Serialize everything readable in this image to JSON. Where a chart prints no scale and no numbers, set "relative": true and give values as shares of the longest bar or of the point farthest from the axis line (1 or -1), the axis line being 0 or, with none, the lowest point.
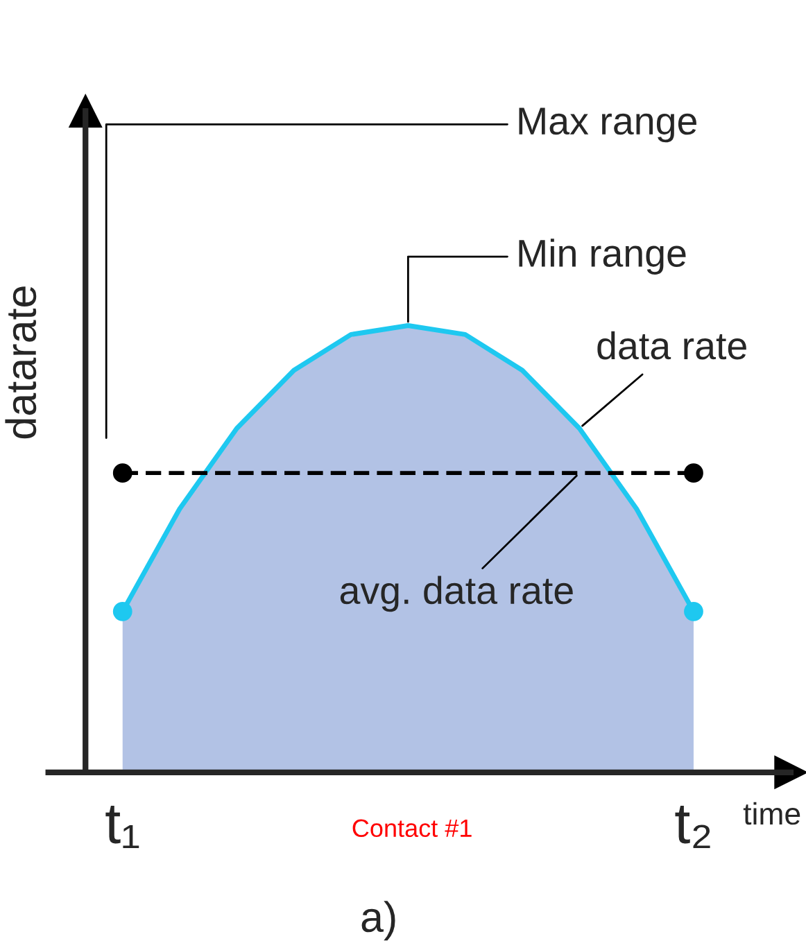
{
  "chart_data": {
    "type": "area",
    "relative": true,
    "xlabel": "time",
    "ylabel": "datarate",
    "categories": [
      "t₁",
      null,
      null,
      null,
      null,
      null,
      null,
      null,
      null,
      null,
      "t₂"
    ],
    "series": [
      {
        "color": "#1ec8f0",
        "values": [
          0.36,
          0.59,
          0.77,
          0.9,
          0.98,
          1.0,
          0.98,
          0.9,
          0.77,
          0.59,
          0.36
        ]
      },
      {
        "type": "line",
        "color": "#000000",
        "values": [
          0.67,
          0.67,
          0.67,
          0.67,
          0.67,
          0.67,
          0.67,
          0.67,
          0.67,
          0.67,
          0.67
        ],
        "line_style": "dashed"
      }
    ],
    "annotations": [
      "Min range",
      "Max range",
      "data rate",
      "avg. data rate",
      "Contact #1",
      "a)"
    ],
    "grid": false,
    "legend": false
  }
}
